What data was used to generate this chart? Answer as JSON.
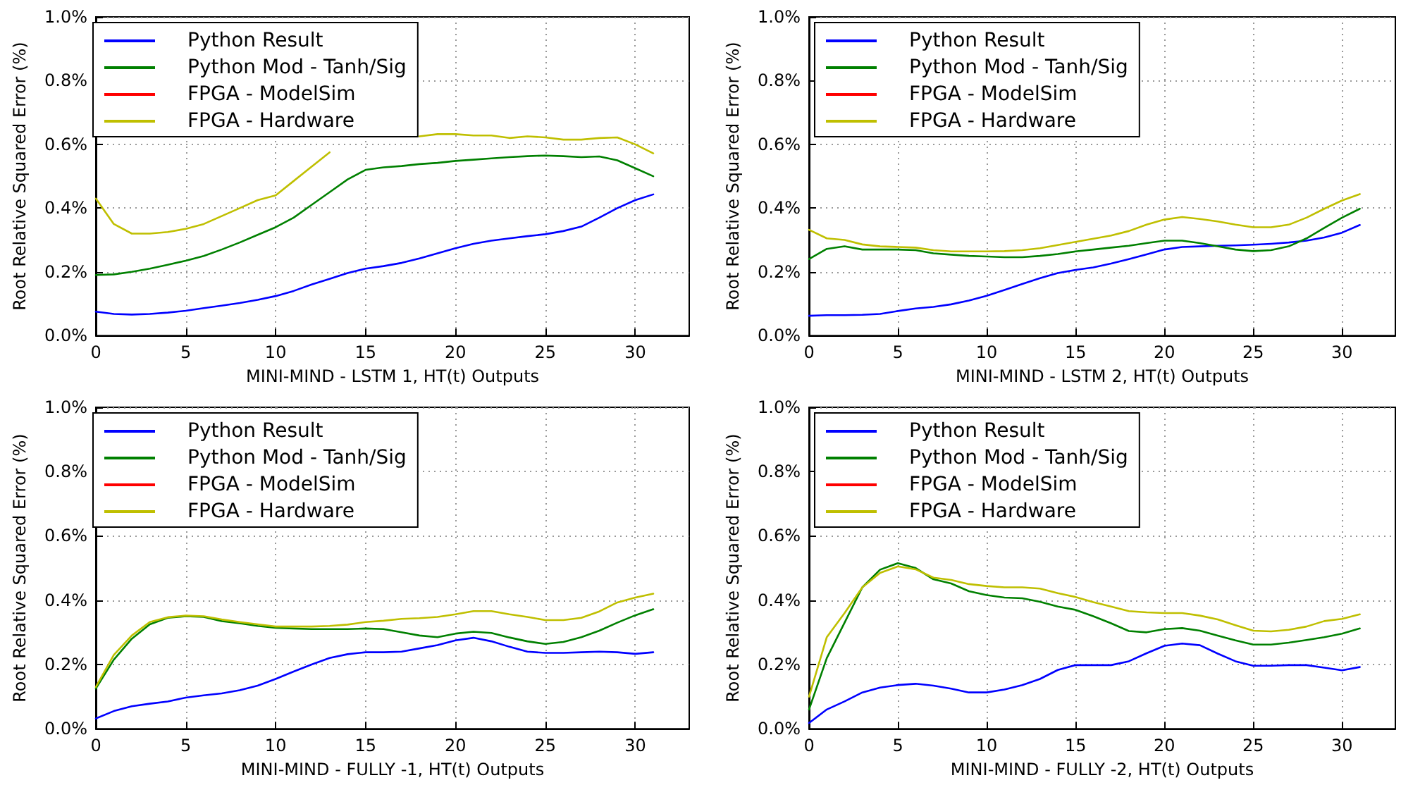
{
  "chart_data": [
    {
      "type": "line",
      "xlabel": "MINI-MIND - LSTM 1, HT(t) Outputs",
      "ylabel": "Root Relative Squared Error (%)",
      "x": [
        0,
        1,
        2,
        3,
        4,
        5,
        6,
        7,
        8,
        9,
        10,
        11,
        12,
        13,
        14,
        15,
        16,
        17,
        18,
        19,
        20,
        21,
        22,
        23,
        24,
        25,
        26,
        27,
        28,
        29,
        30,
        31
      ],
      "xlim": [
        0,
        33
      ],
      "xticks": [
        0,
        5,
        10,
        15,
        20,
        25,
        30
      ],
      "ylim": [
        0,
        1.0
      ],
      "yticks": [
        {
          "value": 0,
          "label": "0.0%"
        },
        {
          "value": 0.2,
          "label": "0.2%"
        },
        {
          "value": 0.4,
          "label": "0.4%"
        },
        {
          "value": 0.6,
          "label": "0.6%"
        },
        {
          "value": 0.8,
          "label": "0.8%"
        },
        {
          "value": 1.0,
          "label": "1.0%"
        }
      ],
      "grid": true,
      "legend": "top left",
      "marker": "none",
      "line_style": "solid",
      "series": [
        {
          "name": "Python Result",
          "color": "#0000ff",
          "values": [
            0.075,
            0.068,
            0.066,
            0.068,
            0.072,
            0.078,
            0.086,
            0.094,
            0.102,
            0.112,
            0.124,
            0.14,
            0.16,
            0.178,
            0.196,
            0.21,
            0.218,
            0.228,
            0.242,
            0.258,
            0.274,
            0.288,
            0.298,
            0.305,
            0.312,
            0.318,
            0.328,
            0.342,
            0.37,
            0.4,
            0.425,
            0.443
          ]
        },
        {
          "name": "Python Mod - Tanh/Sig",
          "color": "#008000",
          "values": [
            0.19,
            0.192,
            0.2,
            0.21,
            0.222,
            0.235,
            0.25,
            0.27,
            0.292,
            0.316,
            0.34,
            0.37,
            0.41,
            0.45,
            0.49,
            0.52,
            0.528,
            0.532,
            0.538,
            0.542,
            0.548,
            0.552,
            0.556,
            0.56,
            0.563,
            0.565,
            0.563,
            0.56,
            0.562,
            0.55,
            0.525,
            0.5
          ]
        },
        {
          "name": "FPGA - ModelSim",
          "color": "#ff0000",
          "values": [
            null,
            null,
            null,
            null,
            null,
            null,
            null,
            null,
            null,
            null,
            null,
            null,
            null,
            null,
            null,
            null,
            null,
            null,
            null,
            null,
            null,
            null,
            null,
            null,
            null,
            null,
            null,
            null,
            null,
            null,
            null,
            null
          ]
        },
        {
          "name": "FPGA - Hardware",
          "color": "#bfbf00",
          "values": [
            0.43,
            0.35,
            0.32,
            0.32,
            0.325,
            0.335,
            0.35,
            0.375,
            0.4,
            0.425,
            0.44,
            0.485,
            0.53,
            0.575,
            null,
            null,
            null,
            null,
            0.625,
            0.632,
            0.632,
            0.628,
            0.628,
            0.62,
            0.625,
            0.622,
            0.615,
            0.615,
            0.62,
            0.622,
            0.6,
            0.572
          ]
        }
      ]
    },
    {
      "type": "line",
      "xlabel": "MINI-MIND - LSTM 2, HT(t) Outputs",
      "ylabel": "Root Relative Squared Error (%)",
      "x": [
        0,
        1,
        2,
        3,
        4,
        5,
        6,
        7,
        8,
        9,
        10,
        11,
        12,
        13,
        14,
        15,
        16,
        17,
        18,
        19,
        20,
        21,
        22,
        23,
        24,
        25,
        26,
        27,
        28,
        29,
        30,
        31
      ],
      "xlim": [
        0,
        33
      ],
      "xticks": [
        0,
        5,
        10,
        15,
        20,
        25,
        30
      ],
      "ylim": [
        0,
        1.0
      ],
      "yticks": [
        {
          "value": 0,
          "label": "0.0%"
        },
        {
          "value": 0.2,
          "label": "0.2%"
        },
        {
          "value": 0.4,
          "label": "0.4%"
        },
        {
          "value": 0.6,
          "label": "0.6%"
        },
        {
          "value": 0.8,
          "label": "0.8%"
        },
        {
          "value": 1.0,
          "label": "1.0%"
        }
      ],
      "grid": true,
      "legend": "top left",
      "marker": "none",
      "line_style": "solid",
      "series": [
        {
          "name": "Python Result",
          "color": "#0000ff",
          "values": [
            0.062,
            0.064,
            0.064,
            0.065,
            0.068,
            0.077,
            0.085,
            0.09,
            0.098,
            0.11,
            0.125,
            0.143,
            0.162,
            0.18,
            0.196,
            0.206,
            0.214,
            0.226,
            0.24,
            0.255,
            0.27,
            0.278,
            0.28,
            0.282,
            0.283,
            0.285,
            0.288,
            0.292,
            0.298,
            0.308,
            0.323,
            0.347
          ]
        },
        {
          "name": "Python Mod - Tanh/Sig",
          "color": "#008000",
          "values": [
            0.24,
            0.272,
            0.28,
            0.27,
            0.27,
            0.27,
            0.268,
            0.258,
            0.254,
            0.25,
            0.248,
            0.246,
            0.246,
            0.25,
            0.256,
            0.264,
            0.27,
            0.276,
            0.282,
            0.29,
            0.298,
            0.298,
            0.29,
            0.28,
            0.27,
            0.265,
            0.268,
            0.28,
            0.305,
            0.338,
            0.37,
            0.398
          ]
        },
        {
          "name": "FPGA - ModelSim",
          "color": "#ff0000",
          "values": [
            null,
            null,
            null,
            null,
            null,
            null,
            null,
            null,
            null,
            null,
            null,
            null,
            null,
            null,
            null,
            null,
            null,
            null,
            null,
            null,
            null,
            null,
            null,
            null,
            null,
            null,
            null,
            null,
            null,
            null,
            null,
            null
          ]
        },
        {
          "name": "FPGA - Hardware",
          "color": "#bfbf00",
          "values": [
            0.332,
            0.305,
            0.3,
            0.286,
            0.28,
            0.278,
            0.276,
            0.268,
            0.264,
            0.264,
            0.264,
            0.265,
            0.268,
            0.274,
            0.284,
            0.294,
            0.304,
            0.314,
            0.328,
            0.348,
            0.364,
            0.372,
            0.366,
            0.358,
            0.348,
            0.34,
            0.34,
            0.348,
            0.37,
            0.398,
            0.424,
            0.444
          ]
        }
      ]
    },
    {
      "type": "line",
      "xlabel": "MINI-MIND - FULLY -1, HT(t) Outputs",
      "ylabel": "Root Relative Squared Error (%)",
      "x": [
        0,
        1,
        2,
        3,
        4,
        5,
        6,
        7,
        8,
        9,
        10,
        11,
        12,
        13,
        14,
        15,
        16,
        17,
        18,
        19,
        20,
        21,
        22,
        23,
        24,
        25,
        26,
        27,
        28,
        29,
        30,
        31
      ],
      "xlim": [
        0,
        33
      ],
      "xticks": [
        0,
        5,
        10,
        15,
        20,
        25,
        30
      ],
      "ylim": [
        0,
        1.0
      ],
      "yticks": [
        {
          "value": 0,
          "label": "0.0%"
        },
        {
          "value": 0.2,
          "label": "0.2%"
        },
        {
          "value": 0.4,
          "label": "0.4%"
        },
        {
          "value": 0.6,
          "label": "0.6%"
        },
        {
          "value": 0.8,
          "label": "0.8%"
        },
        {
          "value": 1.0,
          "label": "1.0%"
        }
      ],
      "grid": true,
      "legend": "top left",
      "marker": "none",
      "line_style": "solid",
      "series": [
        {
          "name": "Python Result",
          "color": "#0000ff",
          "values": [
            0.032,
            0.055,
            0.07,
            0.078,
            0.085,
            0.097,
            0.104,
            0.11,
            0.12,
            0.134,
            0.155,
            0.178,
            0.2,
            0.22,
            0.232,
            0.238,
            0.238,
            0.24,
            0.25,
            0.26,
            0.275,
            0.283,
            0.272,
            0.255,
            0.24,
            0.236,
            0.236,
            0.238,
            0.24,
            0.238,
            0.233,
            0.238
          ]
        },
        {
          "name": "Python Mod - Tanh/Sig",
          "color": "#008000",
          "values": [
            0.125,
            0.215,
            0.28,
            0.325,
            0.345,
            0.35,
            0.348,
            0.335,
            0.328,
            0.32,
            0.314,
            0.312,
            0.31,
            0.31,
            0.31,
            0.312,
            0.31,
            0.3,
            0.29,
            0.285,
            0.296,
            0.302,
            0.298,
            0.284,
            0.272,
            0.264,
            0.27,
            0.285,
            0.305,
            0.33,
            0.353,
            0.372
          ]
        },
        {
          "name": "FPGA - ModelSim",
          "color": "#ff0000",
          "values": [
            null,
            null,
            null,
            null,
            null,
            null,
            null,
            null,
            null,
            null,
            null,
            null,
            null,
            null,
            null,
            null,
            null,
            null,
            null,
            null,
            null,
            null,
            null,
            null,
            null,
            null,
            null,
            null,
            null,
            null,
            null,
            null
          ]
        },
        {
          "name": "FPGA - Hardware",
          "color": "#bfbf00",
          "values": [
            0.13,
            0.23,
            0.29,
            0.332,
            0.347,
            0.352,
            0.35,
            0.34,
            0.332,
            0.325,
            0.318,
            0.318,
            0.318,
            0.32,
            0.324,
            0.332,
            0.336,
            0.342,
            0.344,
            0.348,
            0.356,
            0.366,
            0.366,
            0.356,
            0.348,
            0.338,
            0.338,
            0.345,
            0.365,
            0.393,
            0.408,
            0.42
          ]
        }
      ]
    },
    {
      "type": "line",
      "xlabel": "MINI-MIND - FULLY -2, HT(t) Outputs",
      "ylabel": "Root Relative Squared Error (%)",
      "x": [
        0,
        1,
        2,
        3,
        4,
        5,
        6,
        7,
        8,
        9,
        10,
        11,
        12,
        13,
        14,
        15,
        16,
        17,
        18,
        19,
        20,
        21,
        22,
        23,
        24,
        25,
        26,
        27,
        28,
        29,
        30,
        31
      ],
      "xlim": [
        0,
        33
      ],
      "xticks": [
        0,
        5,
        10,
        15,
        20,
        25,
        30
      ],
      "ylim": [
        0,
        1.0
      ],
      "yticks": [
        {
          "value": 0,
          "label": "0.0%"
        },
        {
          "value": 0.2,
          "label": "0.2%"
        },
        {
          "value": 0.4,
          "label": "0.4%"
        },
        {
          "value": 0.6,
          "label": "0.6%"
        },
        {
          "value": 0.8,
          "label": "0.8%"
        },
        {
          "value": 1.0,
          "label": "1.0%"
        }
      ],
      "grid": true,
      "legend": "top left",
      "marker": "none",
      "line_style": "solid",
      "series": [
        {
          "name": "Python Result",
          "color": "#0000ff",
          "values": [
            0.018,
            0.06,
            0.085,
            0.113,
            0.128,
            0.136,
            0.14,
            0.134,
            0.125,
            0.113,
            0.113,
            0.122,
            0.136,
            0.155,
            0.183,
            0.198,
            0.198,
            0.198,
            0.21,
            0.235,
            0.258,
            0.265,
            0.26,
            0.234,
            0.21,
            0.196,
            0.196,
            0.198,
            0.198,
            0.19,
            0.182,
            0.192
          ]
        },
        {
          "name": "Python Mod - Tanh/Sig",
          "color": "#008000",
          "values": [
            0.06,
            0.22,
            0.33,
            0.44,
            0.495,
            0.515,
            0.5,
            0.465,
            0.452,
            0.428,
            0.416,
            0.408,
            0.406,
            0.395,
            0.38,
            0.37,
            0.35,
            0.328,
            0.304,
            0.3,
            0.31,
            0.313,
            0.305,
            0.29,
            0.275,
            0.262,
            0.262,
            0.268,
            0.276,
            0.285,
            0.296,
            0.312
          ]
        },
        {
          "name": "FPGA - ModelSim",
          "color": "#ff0000",
          "values": [
            null,
            null,
            null,
            null,
            null,
            null,
            null,
            null,
            null,
            null,
            null,
            null,
            null,
            null,
            null,
            null,
            null,
            null,
            null,
            null,
            null,
            null,
            null,
            null,
            null,
            null,
            null,
            null,
            null,
            null,
            null,
            null
          ]
        },
        {
          "name": "FPGA - Hardware",
          "color": "#bfbf00",
          "values": [
            0.1,
            0.285,
            0.36,
            0.44,
            0.485,
            0.505,
            0.496,
            0.47,
            0.463,
            0.45,
            0.444,
            0.44,
            0.44,
            0.436,
            0.422,
            0.41,
            0.394,
            0.38,
            0.366,
            0.362,
            0.36,
            0.36,
            0.352,
            0.34,
            0.322,
            0.305,
            0.303,
            0.308,
            0.318,
            0.335,
            0.342,
            0.356
          ]
        }
      ]
    }
  ]
}
